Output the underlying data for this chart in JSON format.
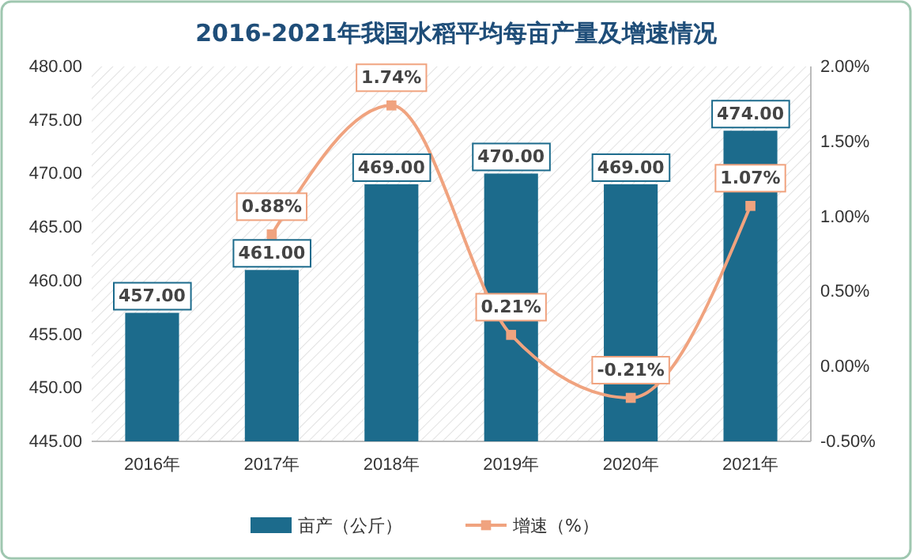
{
  "chart_data": {
    "type": "bar",
    "title": "2016-2021年我国水稻平均每亩产量及增速情况",
    "categories": [
      "2016年",
      "2017年",
      "2018年",
      "2019年",
      "2020年",
      "2021年"
    ],
    "series": [
      {
        "name": "亩产（公斤）",
        "color": "#1c6b8c",
        "values": [
          457,
          461,
          469,
          470,
          469,
          474
        ],
        "value_labels": [
          "457.00",
          "461.00",
          "469.00",
          "470.00",
          "469.00",
          "474.00"
        ]
      },
      {
        "name": "增速（%）",
        "type": "line",
        "axis": "y2",
        "color": "#f0a37f",
        "marker": "square",
        "values": [
          null,
          0.88,
          1.74,
          0.21,
          -0.21,
          1.07
        ],
        "value_labels": [
          null,
          "0.88%",
          "1.74%",
          "0.21%",
          "-0.21%",
          "1.07%"
        ]
      }
    ],
    "ylim": [
      445,
      480
    ],
    "yticks": [
      {
        "value": 445,
        "label": "445.00"
      },
      {
        "value": 450,
        "label": "450.00"
      },
      {
        "value": 455,
        "label": "455.00"
      },
      {
        "value": 460,
        "label": "460.00"
      },
      {
        "value": 465,
        "label": "465.00"
      },
      {
        "value": 470,
        "label": "470.00"
      },
      {
        "value": 475,
        "label": "475.00"
      },
      {
        "value": 480,
        "label": "480.00"
      }
    ],
    "y2lim": [
      -0.5,
      2
    ],
    "y2ticks": [
      {
        "value": -0.5,
        "label": "-0.50%"
      },
      {
        "value": 0,
        "label": "0.00%"
      },
      {
        "value": 0.5,
        "label": "0.50%"
      },
      {
        "value": 1,
        "label": "1.00%"
      },
      {
        "value": 1.5,
        "label": "1.50%"
      },
      {
        "value": 2,
        "label": "2.00%"
      }
    ],
    "legend": "bottom",
    "grid": false
  }
}
